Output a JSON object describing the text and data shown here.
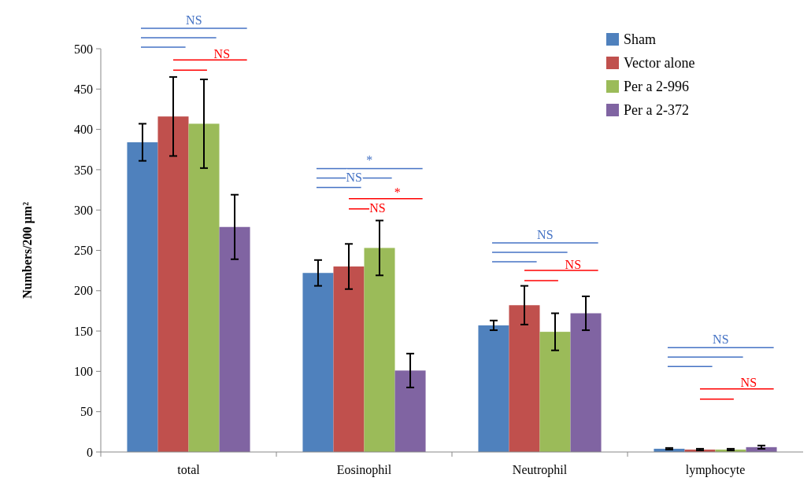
{
  "chart_data": {
    "type": "bar",
    "ylabel": "Numbers/200 µm²",
    "categories": [
      "total",
      "Eosinophil",
      "Neutrophil",
      "lymphocyte"
    ],
    "series": [
      {
        "name": "Sham",
        "color": "#4f81bd",
        "values": [
          384,
          222,
          157,
          4
        ],
        "errors": [
          23,
          16,
          6,
          1
        ]
      },
      {
        "name": "Vector alone",
        "color": "#c0504d",
        "values": [
          416,
          230,
          182,
          3
        ],
        "errors": [
          49,
          28,
          24,
          1
        ]
      },
      {
        "name": "Per a 2-996",
        "color": "#9bbb59",
        "values": [
          407,
          253,
          149,
          3
        ],
        "errors": [
          55,
          34,
          23,
          1
        ]
      },
      {
        "name": "Per a 2-372",
        "color": "#8064a2",
        "values": [
          279,
          101,
          172,
          6
        ],
        "errors": [
          40,
          21,
          21,
          2
        ]
      }
    ],
    "ylim": [
      0,
      500
    ],
    "yticks": [
      0,
      50,
      100,
      150,
      200,
      250,
      300,
      350,
      400,
      450,
      500
    ],
    "legend": "top right",
    "grid": false,
    "annotations": [
      "NS",
      "NS",
      "*",
      "NS",
      "*",
      "NS",
      "NS",
      "NS",
      "NS",
      "NS"
    ]
  }
}
